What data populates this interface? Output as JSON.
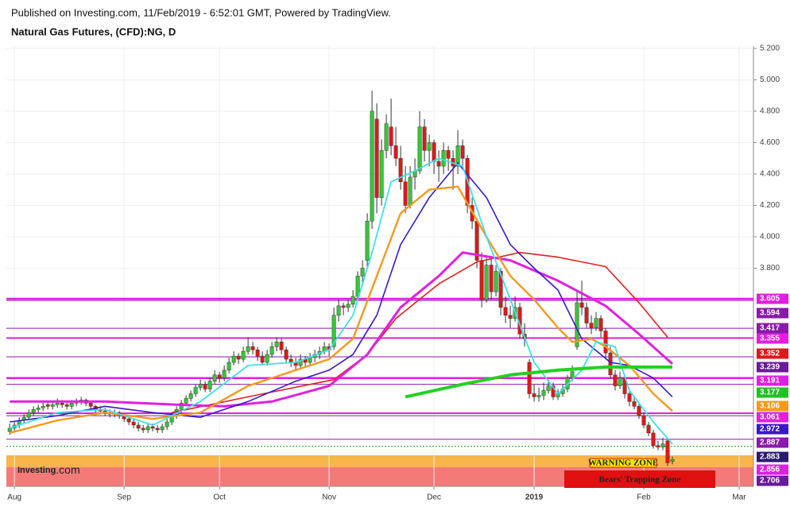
{
  "chart_data": {
    "type": "candlestick",
    "header": "Published on Investing.com, 11/Feb/2019 - 6:52:01 GMT, Powered by TradingView.",
    "title": "Natural Gas Futures, (CFD):NG, D",
    "logo": {
      "name": "Investing",
      "suffix": ".com"
    },
    "grid": true,
    "up_color": "#38c738",
    "down_color": "#e01818",
    "xlim": [
      -0.7,
      156
    ],
    "xticks": [
      {
        "value": 1,
        "label": "Aug"
      },
      {
        "value": 24,
        "label": "Sep"
      },
      {
        "value": 44,
        "label": "Oct"
      },
      {
        "value": 67,
        "label": "Nov"
      },
      {
        "value": 89,
        "label": "Dec"
      },
      {
        "value": 110,
        "label": "2019"
      },
      {
        "value": 133,
        "label": "Feb"
      },
      {
        "value": 153,
        "label": "Mar"
      }
    ],
    "ylim": [
      2.41,
      5.215
    ],
    "yticks": [
      {
        "value": 3.8,
        "label": "3.800"
      },
      {
        "value": 4.0,
        "label": "4.000"
      },
      {
        "value": 4.2,
        "label": "4.200"
      },
      {
        "value": 4.4,
        "label": "4.400"
      },
      {
        "value": 4.6,
        "label": "4.600"
      },
      {
        "value": 4.8,
        "label": "4.800"
      },
      {
        "value": 5.0,
        "label": "5.000"
      },
      {
        "value": 5.2,
        "label": "5.200"
      }
    ],
    "candles": [
      [
        2.76,
        2.81,
        2.74,
        2.78
      ],
      [
        2.78,
        2.82,
        2.76,
        2.8
      ],
      [
        2.8,
        2.85,
        2.78,
        2.83
      ],
      [
        2.83,
        2.87,
        2.81,
        2.85
      ],
      [
        2.85,
        2.9,
        2.83,
        2.88
      ],
      [
        2.88,
        2.92,
        2.86,
        2.9
      ],
      [
        2.9,
        2.93,
        2.88,
        2.91
      ],
      [
        2.91,
        2.95,
        2.89,
        2.92
      ],
      [
        2.93,
        2.95,
        2.9,
        2.92
      ],
      [
        2.92,
        2.95,
        2.9,
        2.93
      ],
      [
        2.93,
        2.97,
        2.91,
        2.94
      ],
      [
        2.94,
        2.96,
        2.91,
        2.93
      ],
      [
        2.93,
        2.95,
        2.9,
        2.92
      ],
      [
        2.92,
        2.96,
        2.9,
        2.94
      ],
      [
        2.94,
        2.97,
        2.92,
        2.95
      ],
      [
        2.95,
        2.98,
        2.93,
        2.96
      ],
      [
        2.96,
        2.97,
        2.92,
        2.94
      ],
      [
        2.94,
        2.95,
        2.9,
        2.92
      ],
      [
        2.92,
        2.93,
        2.88,
        2.9
      ],
      [
        2.9,
        2.92,
        2.87,
        2.89
      ],
      [
        2.89,
        2.91,
        2.86,
        2.88
      ],
      [
        2.88,
        2.9,
        2.85,
        2.87
      ],
      [
        2.87,
        2.9,
        2.85,
        2.88
      ],
      [
        2.88,
        2.89,
        2.84,
        2.86
      ],
      [
        2.86,
        2.87,
        2.82,
        2.84
      ],
      [
        2.84,
        2.86,
        2.8,
        2.82
      ],
      [
        2.82,
        2.84,
        2.78,
        2.8
      ],
      [
        2.8,
        2.82,
        2.76,
        2.78
      ],
      [
        2.78,
        2.8,
        2.75,
        2.77
      ],
      [
        2.77,
        2.81,
        2.75,
        2.79
      ],
      [
        2.79,
        2.81,
        2.76,
        2.78
      ],
      [
        2.78,
        2.8,
        2.75,
        2.77
      ],
      [
        2.77,
        2.81,
        2.75,
        2.79
      ],
      [
        2.79,
        2.84,
        2.77,
        2.82
      ],
      [
        2.82,
        2.88,
        2.8,
        2.86
      ],
      [
        2.86,
        2.92,
        2.84,
        2.9
      ],
      [
        2.9,
        2.96,
        2.88,
        2.94
      ],
      [
        2.94,
        2.99,
        2.92,
        2.97
      ],
      [
        2.97,
        3.02,
        2.95,
        3.0
      ],
      [
        3.0,
        3.06,
        2.98,
        3.04
      ],
      [
        3.04,
        3.09,
        3.02,
        3.06
      ],
      [
        3.06,
        3.08,
        3.01,
        3.03
      ],
      [
        3.03,
        3.1,
        3.01,
        3.08
      ],
      [
        3.08,
        3.15,
        3.06,
        3.12
      ],
      [
        3.12,
        3.14,
        3.07,
        3.1
      ],
      [
        3.1,
        3.18,
        3.08,
        3.15
      ],
      [
        3.15,
        3.23,
        3.13,
        3.2
      ],
      [
        3.2,
        3.27,
        3.18,
        3.24
      ],
      [
        3.24,
        3.26,
        3.19,
        3.22
      ],
      [
        3.22,
        3.3,
        3.2,
        3.27
      ],
      [
        3.27,
        3.36,
        3.25,
        3.3
      ],
      [
        3.3,
        3.33,
        3.25,
        3.28
      ],
      [
        3.28,
        3.3,
        3.21,
        3.24
      ],
      [
        3.24,
        3.27,
        3.18,
        3.2
      ],
      [
        3.2,
        3.28,
        3.18,
        3.25
      ],
      [
        3.25,
        3.33,
        3.23,
        3.3
      ],
      [
        3.3,
        3.36,
        3.27,
        3.33
      ],
      [
        3.33,
        3.35,
        3.25,
        3.28
      ],
      [
        3.28,
        3.3,
        3.2,
        3.22
      ],
      [
        3.22,
        3.25,
        3.17,
        3.2
      ],
      [
        3.2,
        3.23,
        3.15,
        3.18
      ],
      [
        3.18,
        3.25,
        3.16,
        3.22
      ],
      [
        3.22,
        3.24,
        3.17,
        3.2
      ],
      [
        3.2,
        3.26,
        3.18,
        3.23
      ],
      [
        3.23,
        3.28,
        3.2,
        3.25
      ],
      [
        3.25,
        3.3,
        3.22,
        3.27
      ],
      [
        3.27,
        3.33,
        3.25,
        3.3
      ],
      [
        3.3,
        3.32,
        3.24,
        3.28
      ],
      [
        3.3,
        3.55,
        3.28,
        3.5
      ],
      [
        3.5,
        3.6,
        3.46,
        3.56
      ],
      [
        3.56,
        3.58,
        3.5,
        3.55
      ],
      [
        3.55,
        3.6,
        3.52,
        3.57
      ],
      [
        3.57,
        3.66,
        3.55,
        3.62
      ],
      [
        3.62,
        3.78,
        3.6,
        3.75
      ],
      [
        3.75,
        3.85,
        3.7,
        3.8
      ],
      [
        3.85,
        4.15,
        3.8,
        4.1
      ],
      [
        4.1,
        4.93,
        4.05,
        4.8
      ],
      [
        4.75,
        4.85,
        4.15,
        4.25
      ],
      [
        4.25,
        4.62,
        4.2,
        4.55
      ],
      [
        4.55,
        4.78,
        4.5,
        4.72
      ],
      [
        4.7,
        4.88,
        4.52,
        4.58
      ],
      [
        4.58,
        4.7,
        4.45,
        4.5
      ],
      [
        4.5,
        4.58,
        4.3,
        4.35
      ],
      [
        4.35,
        4.45,
        4.15,
        4.2
      ],
      [
        4.2,
        4.45,
        4.18,
        4.38
      ],
      [
        4.38,
        4.5,
        4.3,
        4.42
      ],
      [
        4.42,
        4.8,
        4.4,
        4.7
      ],
      [
        4.7,
        4.75,
        4.48,
        4.55
      ],
      [
        4.55,
        4.65,
        4.45,
        4.6
      ],
      [
        4.6,
        4.62,
        4.4,
        4.48
      ],
      [
        4.48,
        4.55,
        4.35,
        4.45
      ],
      [
        4.45,
        4.6,
        4.4,
        4.55
      ],
      [
        4.55,
        4.58,
        4.42,
        4.5
      ],
      [
        4.5,
        4.55,
        4.3,
        4.45
      ],
      [
        4.45,
        4.68,
        4.4,
        4.58
      ],
      [
        4.58,
        4.62,
        4.45,
        4.5
      ],
      [
        4.5,
        4.52,
        4.15,
        4.2
      ],
      [
        4.2,
        4.25,
        4.05,
        4.1
      ],
      [
        4.1,
        4.12,
        3.8,
        3.85
      ],
      [
        3.85,
        3.9,
        3.55,
        3.6
      ],
      [
        3.6,
        3.88,
        3.58,
        3.82
      ],
      [
        3.82,
        3.86,
        3.6,
        3.65
      ],
      [
        3.65,
        3.82,
        3.62,
        3.78
      ],
      [
        3.78,
        3.8,
        3.5,
        3.55
      ],
      [
        3.55,
        3.62,
        3.45,
        3.5
      ],
      [
        3.5,
        3.56,
        3.42,
        3.48
      ],
      [
        3.48,
        3.62,
        3.46,
        3.55
      ],
      [
        3.55,
        3.58,
        3.35,
        3.38
      ],
      [
        3.38,
        3.45,
        3.3,
        3.35
      ],
      [
        3.2,
        3.22,
        2.97,
        3.0
      ],
      [
        3.0,
        3.06,
        2.95,
        2.98
      ],
      [
        2.98,
        3.04,
        2.95,
        2.99
      ],
      [
        2.99,
        3.07,
        2.96,
        3.02
      ],
      [
        3.02,
        3.09,
        3.0,
        3.05
      ],
      [
        3.05,
        3.07,
        2.96,
        2.98
      ],
      [
        2.98,
        3.03,
        2.96,
        3.0
      ],
      [
        3.0,
        3.06,
        2.98,
        3.03
      ],
      [
        3.03,
        3.12,
        3.01,
        3.1
      ],
      [
        3.1,
        3.18,
        3.08,
        3.14
      ],
      [
        3.3,
        3.65,
        3.28,
        3.58
      ],
      [
        3.58,
        3.72,
        3.5,
        3.55
      ],
      [
        3.55,
        3.58,
        3.42,
        3.45
      ],
      [
        3.45,
        3.5,
        3.38,
        3.42
      ],
      [
        3.42,
        3.52,
        3.4,
        3.48
      ],
      [
        3.48,
        3.5,
        3.36,
        3.4
      ],
      [
        3.4,
        3.42,
        3.22,
        3.26
      ],
      [
        3.26,
        3.3,
        3.1,
        3.12
      ],
      [
        3.12,
        3.15,
        3.02,
        3.05
      ],
      [
        3.05,
        3.14,
        3.03,
        3.1
      ],
      [
        3.1,
        3.12,
        2.97,
        3.0
      ],
      [
        3.0,
        3.02,
        2.92,
        2.95
      ],
      [
        2.95,
        2.98,
        2.9,
        2.92
      ],
      [
        2.92,
        2.94,
        2.84,
        2.86
      ],
      [
        2.86,
        2.88,
        2.78,
        2.8
      ],
      [
        2.8,
        2.82,
        2.73,
        2.75
      ],
      [
        2.75,
        2.77,
        2.65,
        2.67
      ],
      [
        2.67,
        2.7,
        2.64,
        2.66
      ],
      [
        2.66,
        2.72,
        2.64,
        2.68
      ],
      [
        2.7,
        2.72,
        2.54,
        2.56
      ],
      [
        2.57,
        2.6,
        2.55,
        2.58
      ]
    ],
    "lines": [
      {
        "color": "#e02020",
        "width": 1.6,
        "x": [
          34,
          50,
          68,
          75,
          81,
          90,
          98,
          107,
          115,
          125,
          132,
          138
        ],
        "values": [
          2.88,
          2.98,
          3.09,
          3.25,
          3.48,
          3.7,
          3.84,
          3.9,
          3.87,
          3.81,
          3.58,
          3.36
        ]
      },
      {
        "color": "#e020e0",
        "width": 3,
        "x": [
          0,
          20,
          35,
          45,
          55,
          67,
          75,
          82,
          90,
          95,
          105,
          115,
          125,
          132,
          139
        ],
        "values": [
          2.95,
          2.95,
          2.93,
          2.92,
          2.95,
          3.05,
          3.25,
          3.55,
          3.75,
          3.9,
          3.85,
          3.72,
          3.56,
          3.38,
          3.19
        ]
      },
      {
        "color": "#3a18c8",
        "width": 1.6,
        "x": [
          0,
          10,
          20,
          30,
          40,
          50,
          60,
          67,
          72,
          77,
          82,
          88,
          94,
          100,
          105,
          110,
          115,
          120,
          126,
          130,
          135,
          139
        ],
        "values": [
          2.82,
          2.86,
          2.92,
          2.88,
          2.85,
          2.95,
          3.08,
          3.15,
          3.25,
          3.5,
          3.95,
          4.25,
          4.47,
          4.25,
          3.95,
          3.8,
          3.66,
          3.35,
          3.2,
          3.18,
          3.1,
          2.98
        ]
      },
      {
        "color": "#f39a1e",
        "width": 2.4,
        "x": [
          0,
          10,
          20,
          30,
          40,
          50,
          60,
          67,
          72,
          77,
          82,
          88,
          94,
          100,
          105,
          110,
          115,
          118,
          122,
          125,
          130,
          135,
          139
        ],
        "values": [
          2.75,
          2.83,
          2.88,
          2.84,
          2.88,
          3.05,
          3.15,
          3.22,
          3.35,
          3.75,
          4.15,
          4.3,
          4.32,
          4.0,
          3.75,
          3.6,
          3.42,
          3.33,
          3.35,
          3.3,
          3.18,
          3.0,
          2.89
        ]
      },
      {
        "color": "#3ee0e8",
        "width": 1.8,
        "x": [
          0,
          10,
          20,
          30,
          40,
          50,
          60,
          67,
          72,
          76,
          80,
          85,
          90,
          95,
          100,
          105,
          110,
          115,
          120,
          123,
          127,
          130,
          135,
          139
        ],
        "values": [
          2.78,
          2.88,
          2.9,
          2.8,
          2.95,
          3.18,
          3.2,
          3.28,
          3.5,
          3.9,
          4.35,
          4.42,
          4.5,
          4.45,
          4.0,
          3.6,
          3.2,
          3.0,
          3.15,
          3.33,
          3.3,
          3.02,
          2.82,
          2.68
        ]
      },
      {
        "color": "#22d022",
        "width": 4,
        "x": [
          83,
          95,
          105,
          115,
          125,
          139
        ],
        "values": [
          2.98,
          3.06,
          3.12,
          3.15,
          3.17,
          3.17
        ]
      }
    ],
    "hlines": [
      {
        "value": 3.605,
        "color": "#e020e0",
        "width": 2.5
      },
      {
        "value": 3.594,
        "color": "#8a1aa8",
        "width": 1
      },
      {
        "value": 3.417,
        "color": "#8a1aa8",
        "width": 1
      },
      {
        "value": 3.355,
        "color": "#e020e0",
        "width": 2
      },
      {
        "value": 3.235,
        "color": "#8a1aa8",
        "width": 1
      },
      {
        "value": 3.1,
        "color": "#e020e0",
        "width": 2.5
      },
      {
        "value": 3.06,
        "color": "#8a1aa8",
        "width": 1
      },
      {
        "value": 2.876,
        "color": "#e020e0",
        "width": 2
      },
      {
        "value": 2.86,
        "color": "#8a1aa8",
        "width": 1
      },
      {
        "value": 2.71,
        "color": "#8a1aa8",
        "width": 1
      },
      {
        "value": 2.665,
        "color": "#22a022",
        "width": 1,
        "style": "dotted"
      }
    ],
    "zones": [
      {
        "from": 2.532,
        "to": 2.608,
        "color": "#f8b54a",
        "label": "WARNING ZONE"
      },
      {
        "from": 2.41,
        "to": 2.532,
        "color": "#f47a7a",
        "label": "Bears' Trapping Zone"
      }
    ],
    "price_labels": [
      {
        "value": 3.605,
        "color": "#e020e0"
      },
      {
        "value": 3.594,
        "color": "#8a1aa8"
      },
      {
        "value": 3.417,
        "color": "#8a1aa8"
      },
      {
        "value": 3.355,
        "color": "#e020e0"
      },
      {
        "value": 3.352,
        "color": "#e01818"
      },
      {
        "value": 3.239,
        "color": "#6a1a9a"
      },
      {
        "value": 3.191,
        "color": "#e020e0"
      },
      {
        "value": 3.177,
        "color": "#22c022"
      },
      {
        "value": 3.106,
        "color": "#f39a1e"
      },
      {
        "value": 3.061,
        "color": "#e020e0"
      },
      {
        "value": 2.972,
        "color": "#3a18c8"
      },
      {
        "value": 2.887,
        "color": "#8a1aa8"
      },
      {
        "value": 2.883,
        "color": "#2a1a70"
      },
      {
        "value": 2.856,
        "color": "#e020e0"
      },
      {
        "value": 2.706,
        "color": "#6a1a9a"
      }
    ]
  }
}
